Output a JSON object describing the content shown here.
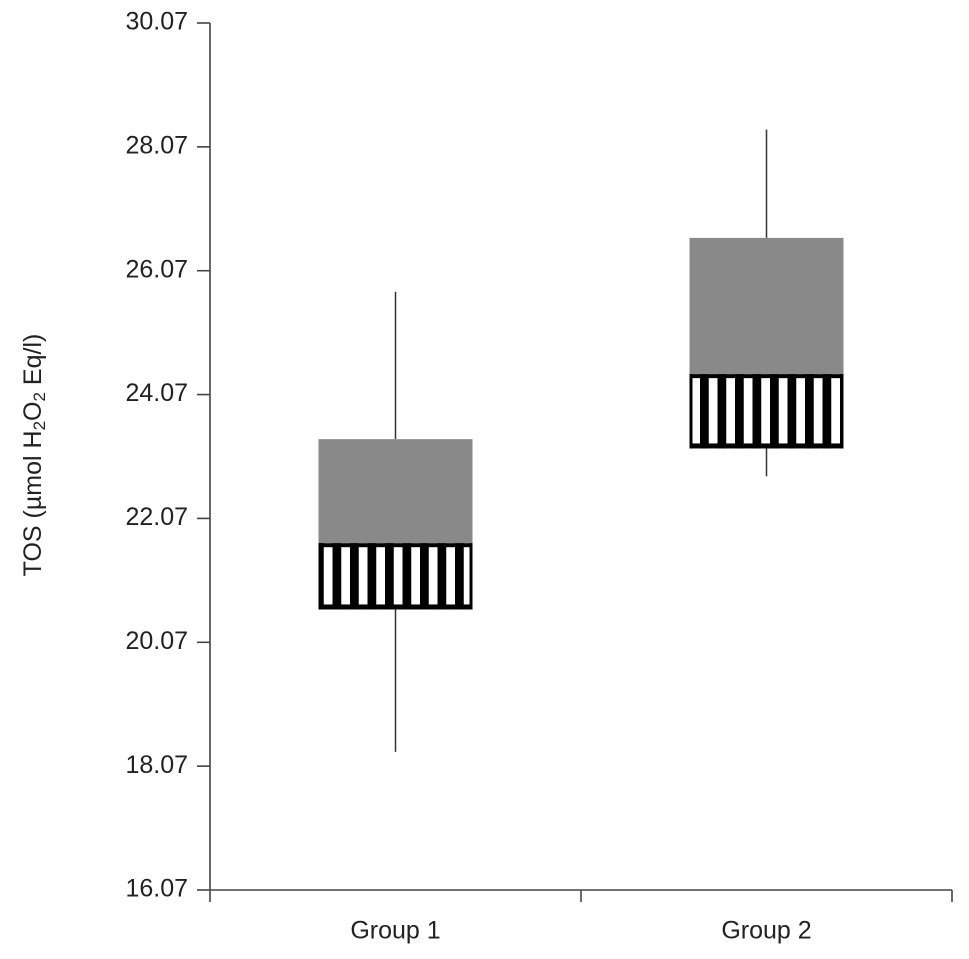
{
  "chart_data": {
    "type": "box",
    "title": "",
    "xlabel": "",
    "ylabel": {
      "prefix": "TOS (µmol H",
      "sub1": "2",
      "mid": "O",
      "sub2": "2",
      "suffix": " Eq/l)"
    },
    "ylim": [
      16.07,
      30.07
    ],
    "yticks": [
      "16.07",
      "18.07",
      "20.07",
      "22.07",
      "24.07",
      "26.07",
      "28.07",
      "30.07"
    ],
    "grid": false,
    "legend": "none",
    "categories": [
      "Group 1",
      "Group 2"
    ],
    "series": [
      {
        "category": "Group 1",
        "min": 18.3,
        "q1": 20.6,
        "median": 21.67,
        "q3": 23.35,
        "max": 25.73
      },
      {
        "category": "Group 2",
        "min": 22.75,
        "q1": 23.2,
        "median": 24.4,
        "q3": 26.6,
        "max": 28.35
      }
    ],
    "colors": {
      "upper_box": "#898989",
      "lower_box_stripe": "#000000",
      "lower_box_bg": "#ffffff",
      "axis": "#444444",
      "whisker": "#333333"
    }
  }
}
